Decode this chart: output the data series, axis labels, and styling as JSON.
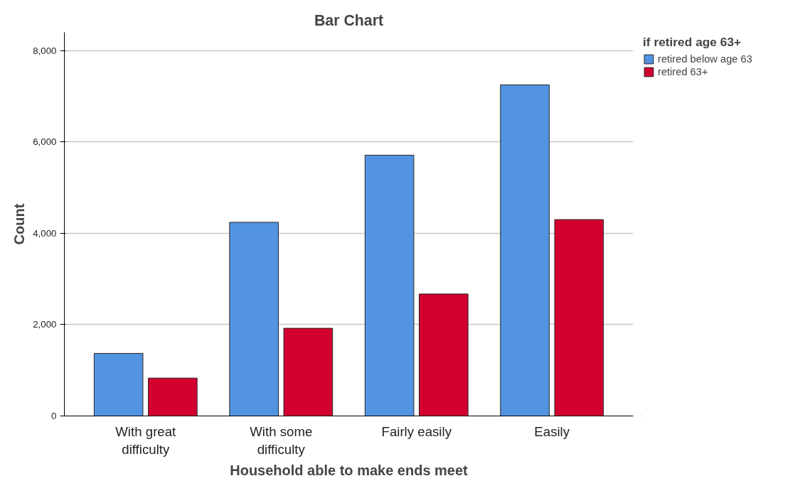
{
  "chart_data": {
    "type": "bar",
    "title": "Bar Chart",
    "xlabel": "Household able to make ends meet",
    "ylabel": "Count",
    "legend_title": "if retired age 63+",
    "categories": [
      "With great difficulty",
      "With some difficulty",
      "Fairly easily",
      "Easily"
    ],
    "series": [
      {
        "name": "retired below age 63",
        "color": "#5294e2",
        "values": [
          1370,
          4240,
          5710,
          7250
        ]
      },
      {
        "name": "retired 63+",
        "color": "#d3002f",
        "values": [
          830,
          1920,
          2670,
          4300
        ]
      }
    ],
    "ylim": [
      0,
      8400
    ],
    "yticks": [
      0,
      {
        "value": 2000,
        "label": "2,000"
      },
      {
        "value": 4000,
        "label": "4,000"
      },
      {
        "value": 6000,
        "label": "6,000"
      },
      {
        "value": 8000,
        "label": "8,000"
      }
    ],
    "grid": "y",
    "legend": "top right"
  }
}
